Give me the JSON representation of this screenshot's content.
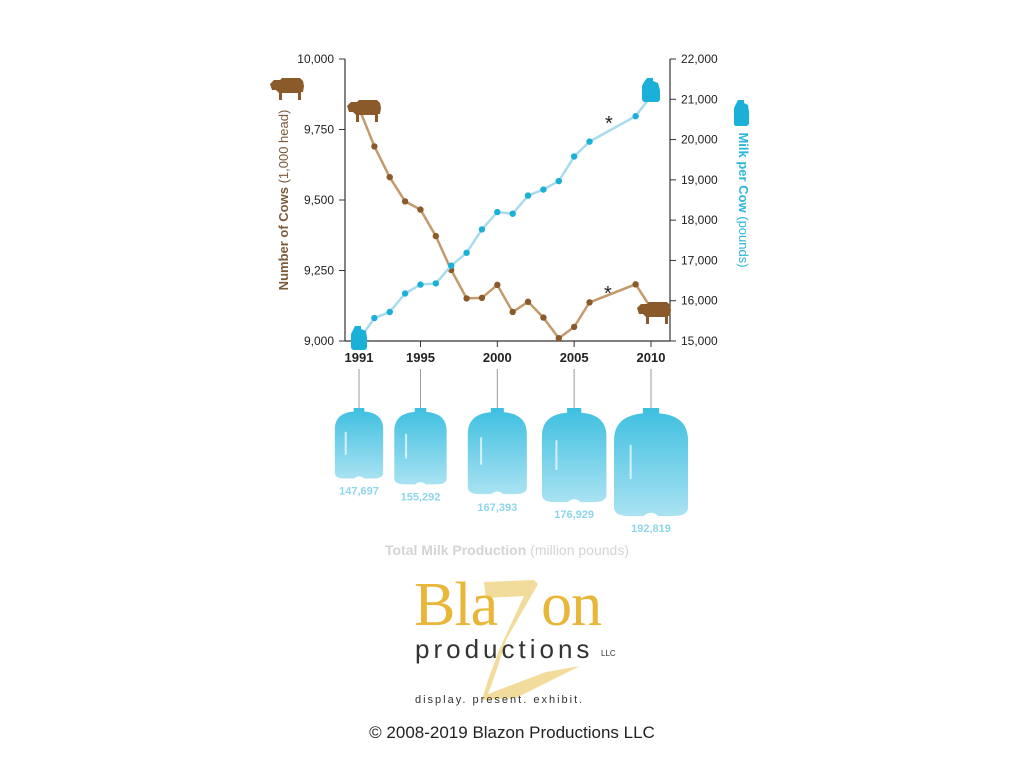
{
  "chart_data": {
    "type": "line",
    "x_ticks": [
      "1991",
      "1995",
      "2000",
      "2005",
      "2010"
    ],
    "y_left": {
      "label_bold": "Number of Cows",
      "label_rest": " (1,000 head)",
      "ticks": [
        "9,000",
        "9,250",
        "9,500",
        "9,750",
        "10,000"
      ],
      "ylim": [
        9000,
        10000
      ]
    },
    "y_right": {
      "label_bold": "Milk per Cow",
      "label_rest": " (pounds)",
      "ticks": [
        "15,000",
        "16,000",
        "17,000",
        "18,000",
        "19,000",
        "20,000",
        "21,000",
        "22,000"
      ],
      "ylim": [
        15000,
        22000
      ]
    },
    "series": [
      {
        "axis": "left",
        "color": "#c39a6b",
        "marker_color": "#8b5a2b",
        "x": [
          1991,
          1992,
          1993,
          1994,
          1995,
          1996,
          1997,
          1998,
          1999,
          2000,
          2001,
          2002,
          2003,
          2004,
          2005,
          2006,
          2009,
          2010
        ],
        "y": [
          9826,
          9690,
          9581,
          9495,
          9466,
          9372,
          9252,
          9151,
          9153,
          9199,
          9103,
          9139,
          9083,
          9010,
          9050,
          9137,
          9201,
          9117
        ]
      },
      {
        "axis": "right",
        "color": "#a8dcec",
        "marker_color": "#1ab0d8",
        "x": [
          1991,
          1992,
          1993,
          1994,
          1995,
          1996,
          1997,
          1998,
          1999,
          2000,
          2001,
          2002,
          2003,
          2004,
          2005,
          2006,
          2009,
          2010
        ],
        "y": [
          15030,
          15570,
          15720,
          16180,
          16400,
          16430,
          16870,
          17190,
          17770,
          18200,
          18160,
          18610,
          18760,
          18970,
          19580,
          19950,
          20580,
          21080
        ]
      }
    ],
    "annotations": [
      "*",
      "*"
    ],
    "total_production": {
      "title_bold": "Total Milk Production",
      "title_rest": " (million pounds)",
      "values": [
        "147,697",
        "155,292",
        "167,393",
        "176,929",
        "192,819"
      ]
    }
  },
  "logo": {
    "name_part1": "Bla",
    "name_part2": "on",
    "sub": "productions",
    "llc": "LLC",
    "tagline": "display. present. exhibit."
  },
  "copyright": "© 2008-2019 Blazon Productions LLC",
  "icons": [
    "cow-icon",
    "milk-jug-icon"
  ]
}
